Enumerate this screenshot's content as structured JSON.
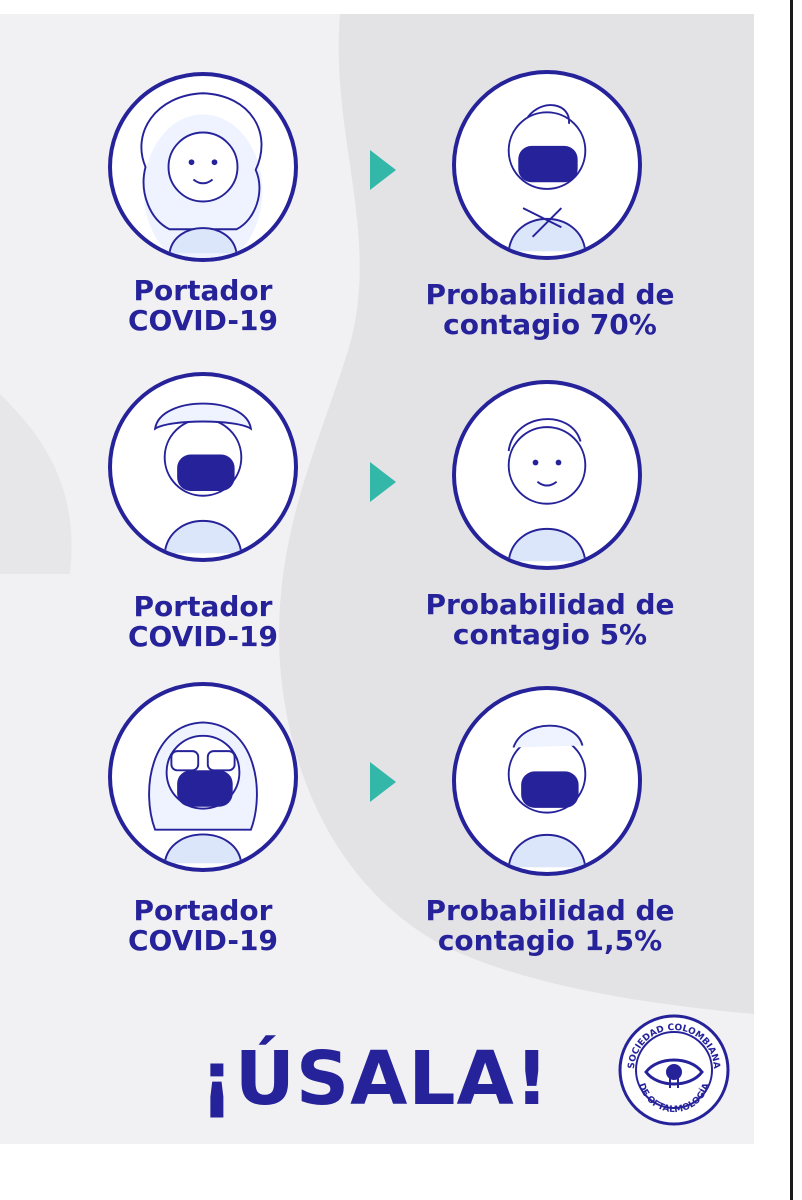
{
  "rows": [
    {
      "left_label_1": "Portador",
      "left_label_2": "COVID-19",
      "right_label_1": "Probabilidad de",
      "right_label_2": "contagio 70%",
      "left_mask": false,
      "right_mask": true
    },
    {
      "left_label_1": "Portador",
      "left_label_2": "COVID-19",
      "right_label_1": "Probabilidad de",
      "right_label_2": "contagio 5%",
      "left_mask": true,
      "right_mask": false
    },
    {
      "left_label_1": "Portador",
      "left_label_2": "COVID-19",
      "right_label_1": "Probabilidad de",
      "right_label_2": "contagio 1,5%",
      "left_mask": true,
      "right_mask": true
    }
  ],
  "cta": "¡ÚSALA!",
  "logo": {
    "text_top": "SOCIEDAD COLOMBIANA",
    "text_bottom": "DE OFTALMOLOGÍA",
    "icon": "eye-seal-icon"
  },
  "colors": {
    "navy": "#26239a",
    "teal_arrow": "#33b7a8",
    "light_blue": "#dbe6fb",
    "background_light": "#f1f1f3",
    "background_gray": "#e2e2e5"
  }
}
